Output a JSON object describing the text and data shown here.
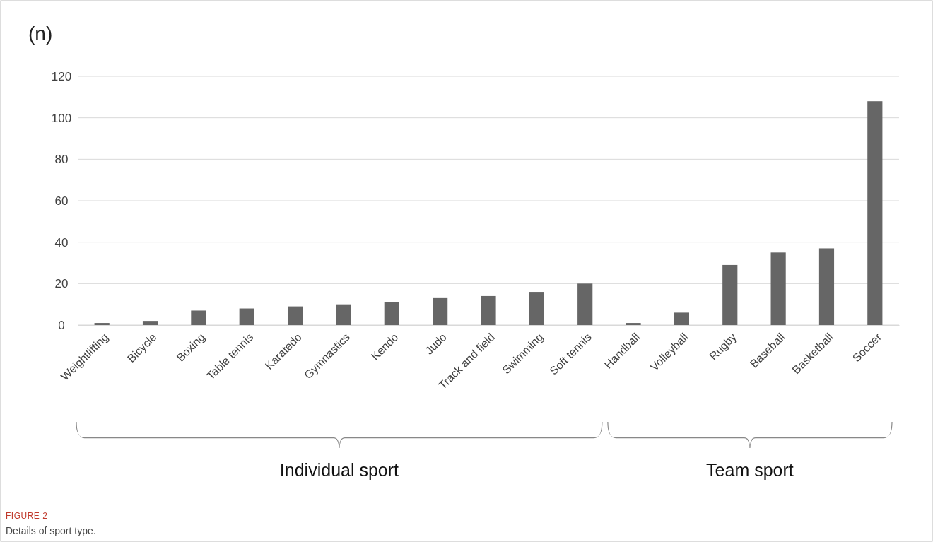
{
  "chart_data": {
    "type": "bar",
    "ylabel": "(n)",
    "categories": [
      "Weightlifting",
      "Bicycle",
      "Boxing",
      "Table tennis",
      "Karatedo",
      "Gymnastics",
      "Kendo",
      "Judo",
      "Track and field",
      "Swimming",
      "Soft tennis",
      "Handball",
      "Volleyball",
      "Rugby",
      "Baseball",
      "Basketball",
      "Soccer"
    ],
    "values": [
      1,
      2,
      7,
      8,
      9,
      10,
      11,
      13,
      14,
      16,
      20,
      1,
      6,
      29,
      35,
      37,
      108
    ],
    "color": "#666666",
    "ylim": [
      0,
      120
    ],
    "yticks": [
      0,
      20,
      40,
      60,
      80,
      100,
      120
    ],
    "grid": "y",
    "annotations": [
      "Individual sport",
      "Team sport",
      "FIGURE 2",
      "Details of sport type."
    ]
  }
}
